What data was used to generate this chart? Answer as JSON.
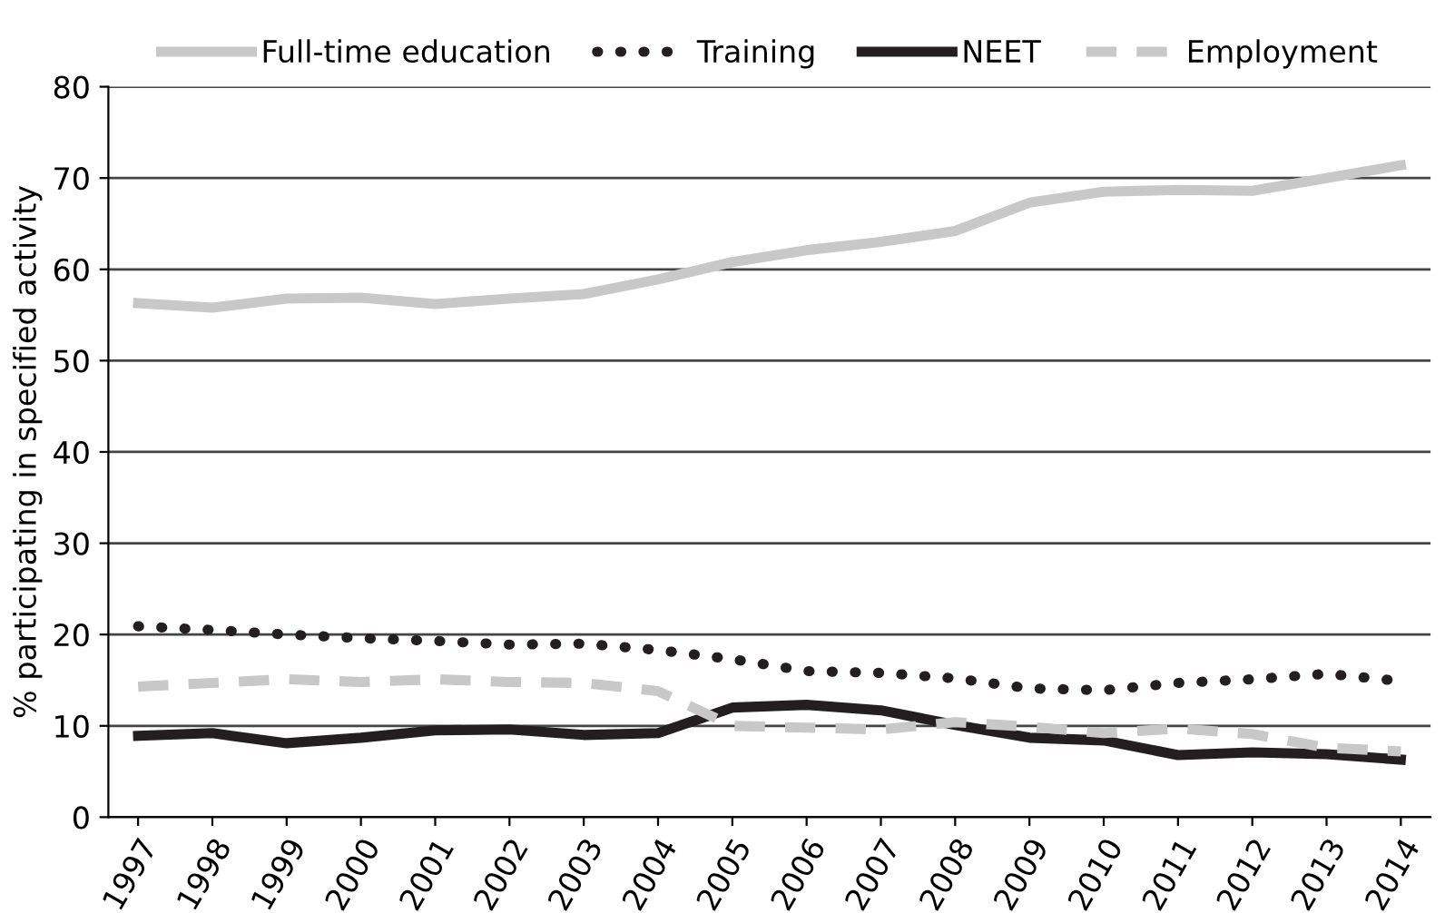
{
  "chart_data": {
    "type": "line",
    "ylabel": "% participating in specified activity",
    "categories": [
      "1997",
      "1998",
      "1999",
      "2000",
      "2001",
      "2002",
      "2003",
      "2004",
      "2005",
      "2006",
      "2007",
      "2008",
      "2009",
      "2010",
      "2011",
      "2012",
      "2013",
      "2014"
    ],
    "series": [
      {
        "name": "Full-time education",
        "color": "#c8c8c8",
        "line_style": "solid",
        "values": [
          56.3,
          55.8,
          56.8,
          56.9,
          56.2,
          56.8,
          57.3,
          58.9,
          60.8,
          62.1,
          63.0,
          64.2,
          67.3,
          68.5,
          68.7,
          68.6,
          70.0,
          71.4
        ]
      },
      {
        "name": "Training",
        "color": "#231f20",
        "line_style": "dotted",
        "values": [
          20.9,
          20.5,
          20.0,
          19.6,
          19.3,
          18.9,
          19.0,
          18.3,
          17.3,
          16.0,
          15.8,
          15.2,
          14.1,
          13.9,
          14.7,
          15.1,
          15.7,
          14.9
        ]
      },
      {
        "name": "NEET",
        "color": "#231f20",
        "line_style": "solid",
        "values": [
          8.9,
          9.2,
          8.1,
          8.7,
          9.5,
          9.6,
          9.0,
          9.2,
          12.0,
          12.3,
          11.7,
          10.1,
          8.7,
          8.4,
          6.8,
          7.1,
          6.9,
          6.3
        ]
      },
      {
        "name": "Employment",
        "color": "#c8c8c8",
        "line_style": "dashed",
        "values": [
          14.3,
          14.7,
          15.1,
          14.8,
          15.1,
          14.8,
          14.7,
          13.8,
          10.0,
          9.8,
          9.6,
          10.4,
          9.9,
          9.2,
          9.7,
          9.1,
          7.6,
          7.2
        ]
      }
    ],
    "ylim": [
      0,
      80
    ],
    "yticks": [
      0,
      10,
      20,
      30,
      40,
      50,
      60,
      70,
      80
    ],
    "grid": "y",
    "legend": "top",
    "marker": "none"
  }
}
